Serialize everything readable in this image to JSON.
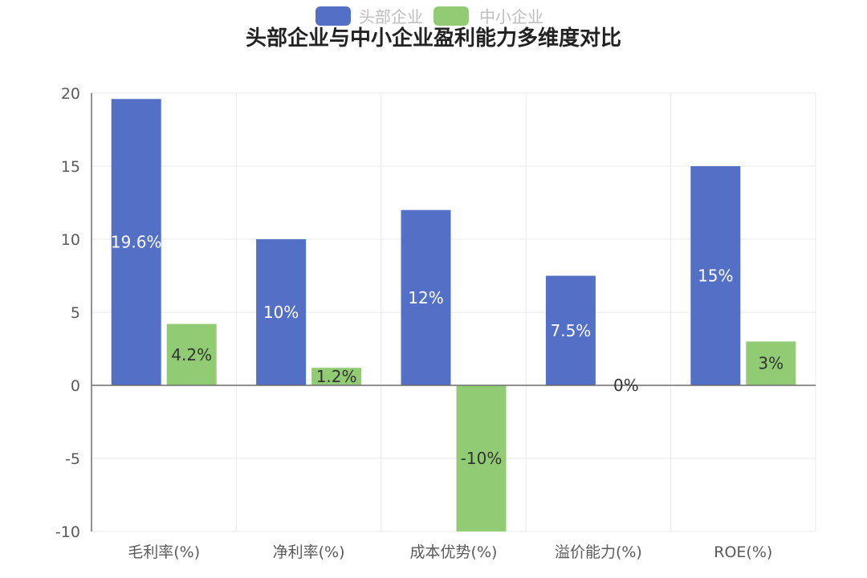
{
  "chart_data": {
    "type": "bar",
    "title": "头部企业与中小企业盈利能力多维度对比",
    "categories": [
      "毛利率(%)",
      "净利率(%)",
      "成本优势(%)",
      "溢价能力(%)",
      "ROE(%)"
    ],
    "series": [
      {
        "name": "头部企业",
        "values": [
          19.6,
          10,
          12,
          7.5,
          15
        ],
        "labels": [
          "19.6%",
          "10%",
          "12%",
          "7.5%",
          "15%"
        ],
        "color": "#5470c6",
        "label_color": "#ffffff"
      },
      {
        "name": "中小企业",
        "values": [
          4.2,
          1.2,
          -10,
          0,
          3
        ],
        "labels": [
          "4.2%",
          "1.2%",
          "-10%",
          "0%",
          "3%"
        ],
        "color": "#91cc75",
        "label_color": "#333333"
      }
    ],
    "y_ticks": [
      "20",
      "15",
      "10",
      "5",
      "0",
      "-5",
      "-10"
    ],
    "ylim": [
      -10,
      20
    ],
    "xlabel": "",
    "ylabel": "",
    "grid": true,
    "legend_position": "top-center"
  }
}
